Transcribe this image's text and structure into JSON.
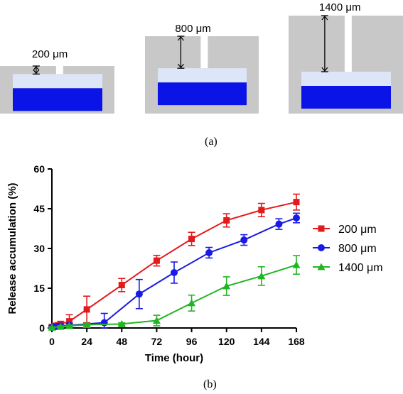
{
  "panel_a": {
    "caption": "(a)",
    "devices": [
      {
        "depth_label": "200 μm",
        "depth_um": 200
      },
      {
        "depth_label": "800 μm",
        "depth_um": 800
      },
      {
        "depth_label": "1400 μm",
        "depth_um": 1400
      }
    ],
    "colors": {
      "body": "#c8c8c8",
      "light_layer": "#dde6f8",
      "dark_layer": "#0a14e6",
      "channel": "#ffffff"
    }
  },
  "panel_b": {
    "caption": "(b)"
  },
  "chart_data": {
    "type": "line",
    "title": "",
    "xlabel": "Time (hour)",
    "ylabel": "Release accumulation (%)",
    "xlim": [
      0,
      168
    ],
    "ylim": [
      0,
      60
    ],
    "xticks": [
      0,
      24,
      48,
      72,
      96,
      120,
      144,
      168
    ],
    "yticks": [
      0,
      15,
      30,
      45,
      60
    ],
    "legend_position": "right",
    "grid": false,
    "series": [
      {
        "name": "200 μm",
        "color": "#e31a1c",
        "marker": "square",
        "x": [
          0,
          2,
          4,
          6,
          12,
          24,
          48,
          72,
          96,
          120,
          144,
          168
        ],
        "y": [
          0.4,
          0.8,
          1.0,
          1.5,
          2.5,
          7.0,
          16.2,
          25.4,
          33.6,
          40.6,
          44.5,
          47.5
        ],
        "err": [
          0.5,
          0.6,
          0.8,
          1.0,
          2.5,
          5.0,
          2.5,
          2.0,
          2.5,
          2.5,
          2.5,
          3.0
        ]
      },
      {
        "name": "800 μm",
        "color": "#1a1ae6",
        "marker": "circle",
        "x": [
          0,
          2,
          4,
          6,
          12,
          36,
          60,
          84,
          108,
          132,
          156,
          168
        ],
        "y": [
          0.2,
          0.4,
          0.6,
          0.8,
          1.0,
          2.0,
          12.8,
          20.9,
          28.4,
          33.2,
          39.2,
          41.5
        ],
        "err": [
          0.3,
          0.3,
          0.4,
          0.4,
          0.8,
          3.5,
          5.5,
          4.0,
          2.0,
          2.0,
          2.0,
          1.8
        ]
      },
      {
        "name": "1400 μm",
        "color": "#22b522",
        "marker": "triangle",
        "x": [
          0,
          6,
          12,
          24,
          48,
          72,
          96,
          120,
          144,
          168
        ],
        "y": [
          0.2,
          0.5,
          0.8,
          1.2,
          1.5,
          2.8,
          9.4,
          15.8,
          19.6,
          23.8
        ],
        "err": [
          0.2,
          0.3,
          0.3,
          0.5,
          0.5,
          2.0,
          3.0,
          3.5,
          3.5,
          3.5
        ]
      }
    ]
  }
}
